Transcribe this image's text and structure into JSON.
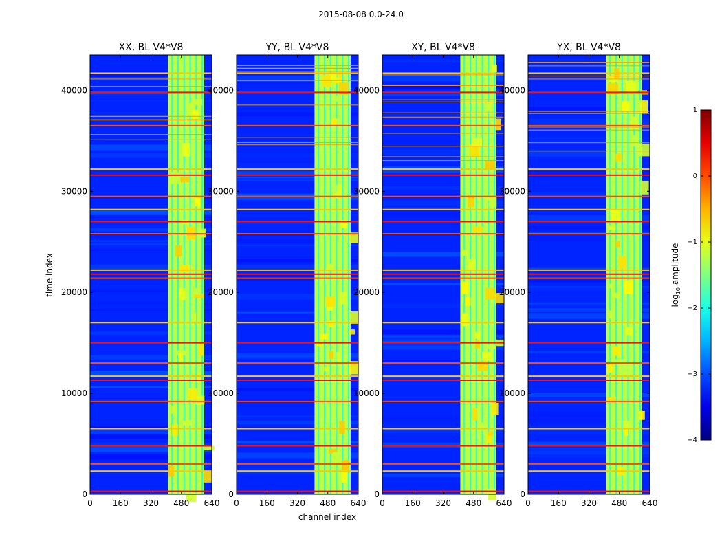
{
  "figure_title": "2015-08-08 0.0-24.0",
  "chart_data": {
    "type": "heatmap",
    "shared": {
      "xlabel": "channel index",
      "ylabel": "time index",
      "xlim": [
        0,
        640
      ],
      "ylim": [
        0,
        43500
      ],
      "xticks": [
        0,
        160,
        320,
        480,
        640
      ],
      "yticks": [
        0,
        10000,
        20000,
        30000,
        40000
      ],
      "xtick_labels": [
        "0",
        "160",
        "320",
        "480",
        "640"
      ],
      "ytick_labels": [
        "0",
        "10000",
        "20000",
        "30000",
        "40000"
      ],
      "colormap": "jet",
      "colorbar": {
        "label_prefix": "log",
        "label_sub": "10",
        "label_suffix": " amplitude",
        "range": [
          -4,
          1
        ],
        "ticks": [
          1,
          0,
          -1,
          -2,
          -3,
          -4
        ],
        "tick_labels": [
          "1",
          "0",
          "−1",
          "−2",
          "−3",
          "−4"
        ]
      },
      "description_values": {
        "background_log10_amplitude": -3.2,
        "bright_band_channels": [
          [
            410,
            600
          ]
        ],
        "bright_band_log10_amplitude": -1.2,
        "flagged_time_rows": [
          300,
          2300,
          3000,
          4800,
          6500,
          9200,
          11300,
          11700,
          13000,
          15000,
          17000,
          21400,
          21800,
          22200,
          25800,
          27000,
          28200,
          29500,
          31600,
          32200,
          36500,
          39800,
          41700
        ],
        "flagged_log10_amplitude": 0.3
      }
    },
    "panels": [
      {
        "title": "XX, BL V4*V8",
        "pol": "XX"
      },
      {
        "title": "YY, BL V4*V8",
        "pol": "YY"
      },
      {
        "title": "XY, BL V4*V8",
        "pol": "XY"
      },
      {
        "title": "YX, BL V4*V8",
        "pol": "YX"
      }
    ]
  }
}
